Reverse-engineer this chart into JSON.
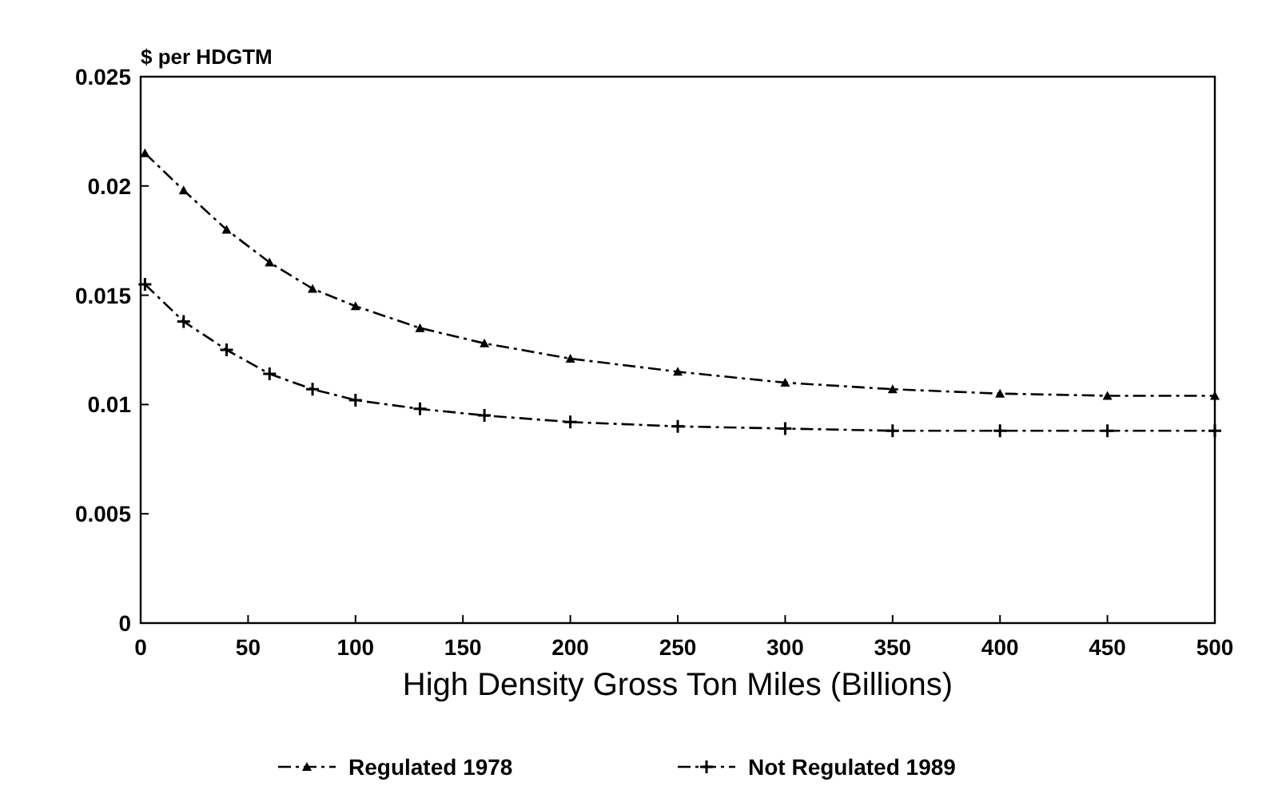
{
  "chart_data": {
    "type": "line",
    "ylabel": "$ per HDGTM",
    "xlabel": "High Density Gross Ton Miles (Billions)",
    "x": [
      2,
      20,
      40,
      60,
      80,
      100,
      130,
      160,
      200,
      250,
      300,
      350,
      400,
      450,
      500
    ],
    "series": [
      {
        "name": "Regulated 1978",
        "color": "#000000",
        "marker": "triangle",
        "line_style": "dashed",
        "values": [
          0.0215,
          0.0198,
          0.018,
          0.0165,
          0.0153,
          0.0145,
          0.0135,
          0.0128,
          0.0121,
          0.0115,
          0.011,
          0.0107,
          0.0105,
          0.0104,
          0.0104
        ]
      },
      {
        "name": "Not Regulated 1989",
        "color": "#000000",
        "marker": "cross",
        "line_style": "dashed",
        "values": [
          0.0155,
          0.0138,
          0.0125,
          0.0114,
          0.0107,
          0.0102,
          0.0098,
          0.0095,
          0.0092,
          0.009,
          0.0089,
          0.0088,
          0.0088,
          0.0088,
          0.0088
        ]
      }
    ],
    "xlim": [
      0,
      500
    ],
    "xticks": [
      0,
      50,
      100,
      150,
      200,
      250,
      300,
      350,
      400,
      450,
      500
    ],
    "ylim": [
      0,
      0.025
    ],
    "yticks": [
      0,
      0.005,
      0.01,
      0.015,
      0.02,
      0.025
    ],
    "legend": "bottom"
  }
}
